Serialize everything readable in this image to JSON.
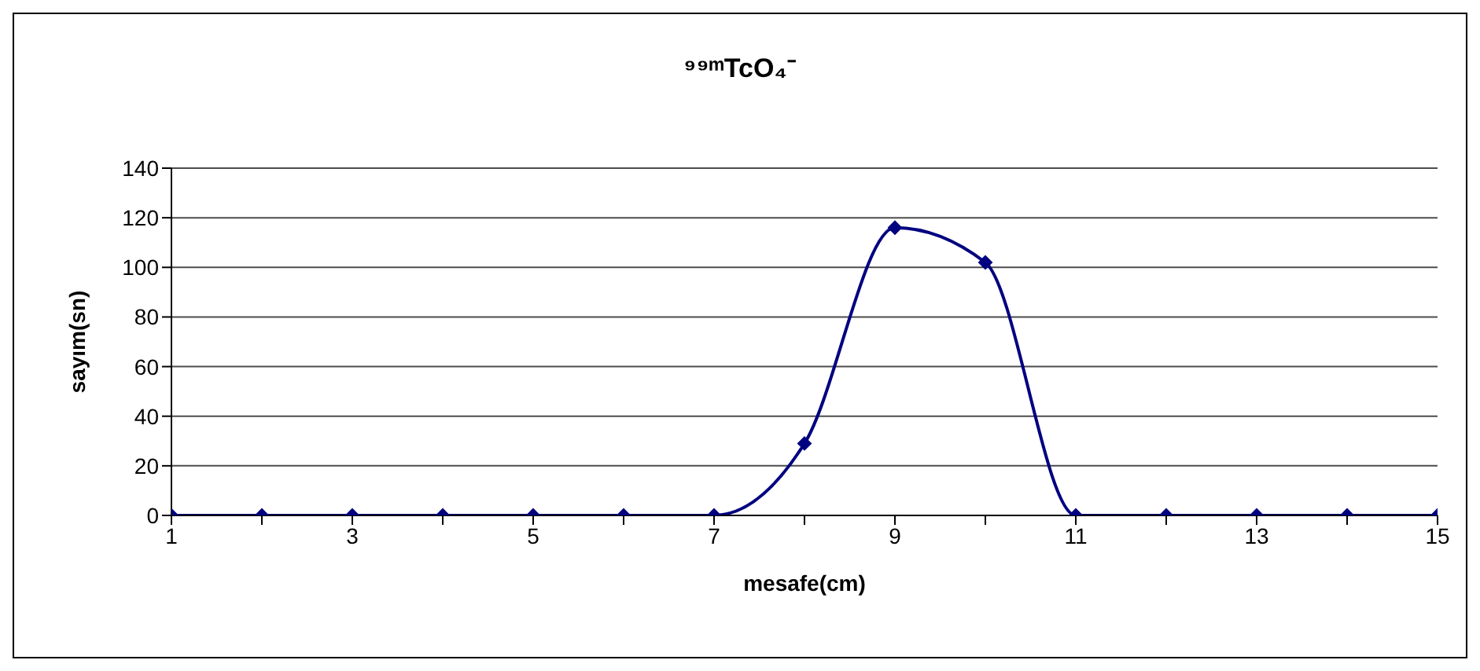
{
  "chart_data": {
    "type": "line",
    "title": "⁹⁹ᵐTcO₄⁻",
    "xlabel": "mesafe(cm)",
    "ylabel": "sayım(sn)",
    "x": [
      1,
      2,
      3,
      4,
      5,
      6,
      7,
      8,
      9,
      10,
      11,
      12,
      13,
      14,
      15
    ],
    "series": [
      {
        "color": "#000080",
        "values": [
          0,
          0,
          0,
          0,
          0,
          0,
          0,
          29,
          116,
          102,
          0,
          0,
          0,
          0,
          0
        ]
      }
    ],
    "xlim": [
      1,
      15
    ],
    "xticks": [
      1,
      {
        "value": 2,
        "label": null
      },
      3,
      {
        "value": 4,
        "label": null
      },
      5,
      {
        "value": 6,
        "label": null
      },
      7,
      {
        "value": 8,
        "label": null
      },
      9,
      {
        "value": 10,
        "label": null
      },
      11,
      {
        "value": 12,
        "label": null
      },
      13,
      {
        "value": 14,
        "label": null
      },
      15
    ],
    "ylim": [
      0,
      140
    ],
    "yticks": [
      0,
      20,
      40,
      60,
      80,
      100,
      120,
      140
    ],
    "grid": "y",
    "legend": false,
    "marker": "diamond",
    "line_style": "solid"
  }
}
